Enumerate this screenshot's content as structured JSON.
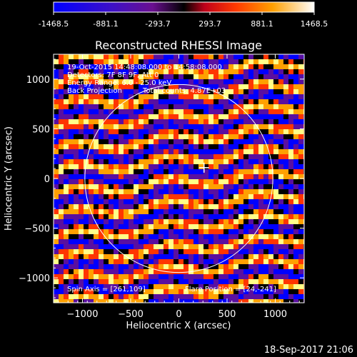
{
  "colorbar": {
    "ticks": [
      "-1468.5",
      "-881.1",
      "-293.7",
      "293.7",
      "881.1",
      "1468.5"
    ],
    "min": -1468.5,
    "max": 1468.5
  },
  "chart_data": {
    "type": "heatmap",
    "title": "Reconstructed RHESSI Image",
    "xlabel": "Heliocentric X (arcsec)",
    "ylabel": "Heliocentric Y (arcsec)",
    "xlim": [
      -1300,
      1300
    ],
    "ylim": [
      -1250,
      1250
    ],
    "x_ticks": [
      -1000,
      -500,
      0,
      500,
      1000
    ],
    "y_ticks": [
      -1000,
      -500,
      0,
      500,
      1000
    ],
    "x_tick_labels": [
      "−1000",
      "−500",
      "0",
      "500",
      "1000"
    ],
    "y_tick_labels": [
      "−1000",
      "−500",
      "0",
      "500",
      "1000"
    ],
    "solar_limb_radius": 975,
    "flare_marker": [
      261,
      109
    ],
    "annotations": {
      "time": "19-Oct-2015 14:48:08.000 to 14:58:08.000",
      "detectors": "Detectors: 7F 8F 9F, Att 0",
      "energy": "Energy Range: 6.0 - 25.0 keV",
      "method": "Back Projection",
      "counts": "Total counts: 4.87E+03",
      "spin_axis": "Spin Axis = [261,109]",
      "flare_position": "Flare Position = [24,-241]"
    },
    "colors": [
      "#0000ff",
      "#5a0fa0",
      "#000000",
      "#ff3500",
      "#ffa000",
      "#ffff88"
    ]
  },
  "footer": {
    "timestamp": "18-Sep-2017 21:06"
  }
}
